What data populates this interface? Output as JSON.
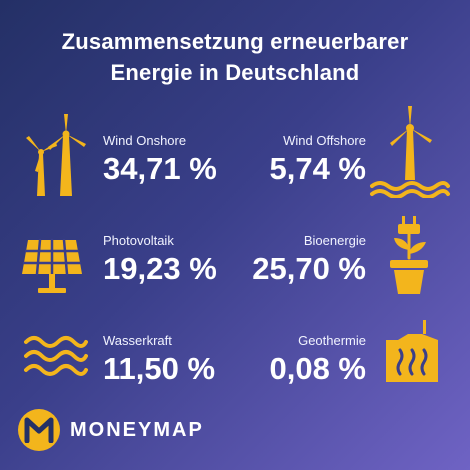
{
  "title": {
    "line1": "Zusammensetzung erneuerbarer",
    "line2": "Energie in Deutschland"
  },
  "items": [
    {
      "label": "Wind Onshore",
      "value": "34,71 %",
      "icon": "wind-turbines-icon"
    },
    {
      "label": "Wind Offshore",
      "value": "5,74 %",
      "icon": "offshore-wind-turbine-icon"
    },
    {
      "label": "Photovoltaik",
      "value": "19,23 %",
      "icon": "solar-panel-icon"
    },
    {
      "label": "Bioenergie",
      "value": "25,70 %",
      "icon": "plug-plant-icon"
    },
    {
      "label": "Wasserkraft",
      "value": "11,50 %",
      "icon": "water-waves-icon"
    },
    {
      "label": "Geothermie",
      "value": "0,08 %",
      "icon": "geothermal-heat-icon"
    }
  ],
  "brand": {
    "name": "MONEYMAP",
    "logo_letter": "M",
    "accent_color": "#f3b51c"
  },
  "colors": {
    "background_start": "#243066",
    "background_mid": "#3a3f8a",
    "background_end": "#6f63c4",
    "text": "#ffffff",
    "icon": "#f3b51c"
  }
}
